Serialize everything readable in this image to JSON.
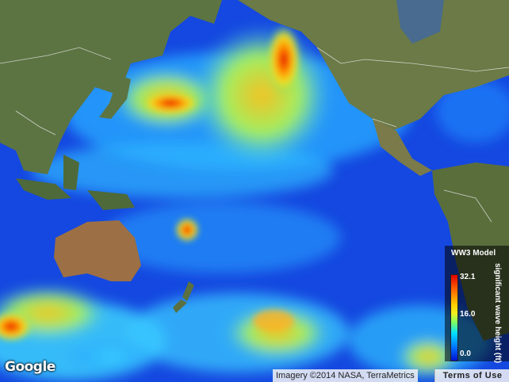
{
  "legend": {
    "title": "WW3 Model",
    "label": "significant wave height (ft)",
    "max": "32.1",
    "mid": "16.0",
    "min": "0.0"
  },
  "attribution": "Imagery ©2014 NASA, TerraMetrics",
  "terms": "Terms of Use",
  "logo": "Google"
}
